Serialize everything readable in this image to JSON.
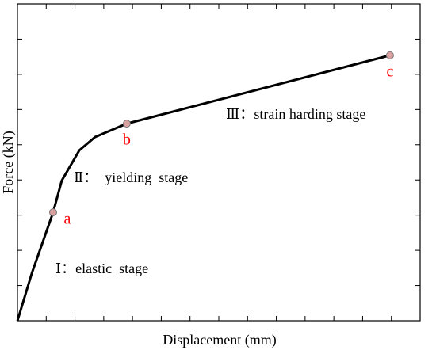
{
  "chart_data": {
    "type": "line",
    "x_label": "Displacement (mm)",
    "y_label": "Force (kN)",
    "x": [
      0,
      0.5,
      1.24,
      1.54,
      2.15,
      2.7,
      3.8,
      12.95
    ],
    "series": [
      {
        "color": "#000000",
        "values": [
          0,
          1.35,
          3.08,
          3.98,
          4.84,
          5.22,
          5.6,
          7.54
        ]
      }
    ],
    "markers": [
      {
        "label": "a",
        "x": 1.24,
        "y": 3.08
      },
      {
        "label": "b",
        "x": 3.8,
        "y": 5.6
      },
      {
        "label": "c",
        "x": 12.95,
        "y": 7.54
      }
    ],
    "marker_color": "#d9a0a0",
    "marker_label_color": "#ff0000",
    "annotations": [
      "Ⅰ：elastic  stage",
      "Ⅱ：  yielding  stage",
      "Ⅲ：strain harding stage"
    ],
    "xlim": [
      0,
      14
    ],
    "ylim": [
      0,
      9
    ],
    "xticks": [
      1,
      2,
      3,
      4,
      5,
      6,
      7,
      8,
      9,
      10,
      11,
      12,
      13
    ],
    "yticks": [
      1,
      2,
      3,
      4,
      5,
      6,
      7,
      8
    ]
  }
}
